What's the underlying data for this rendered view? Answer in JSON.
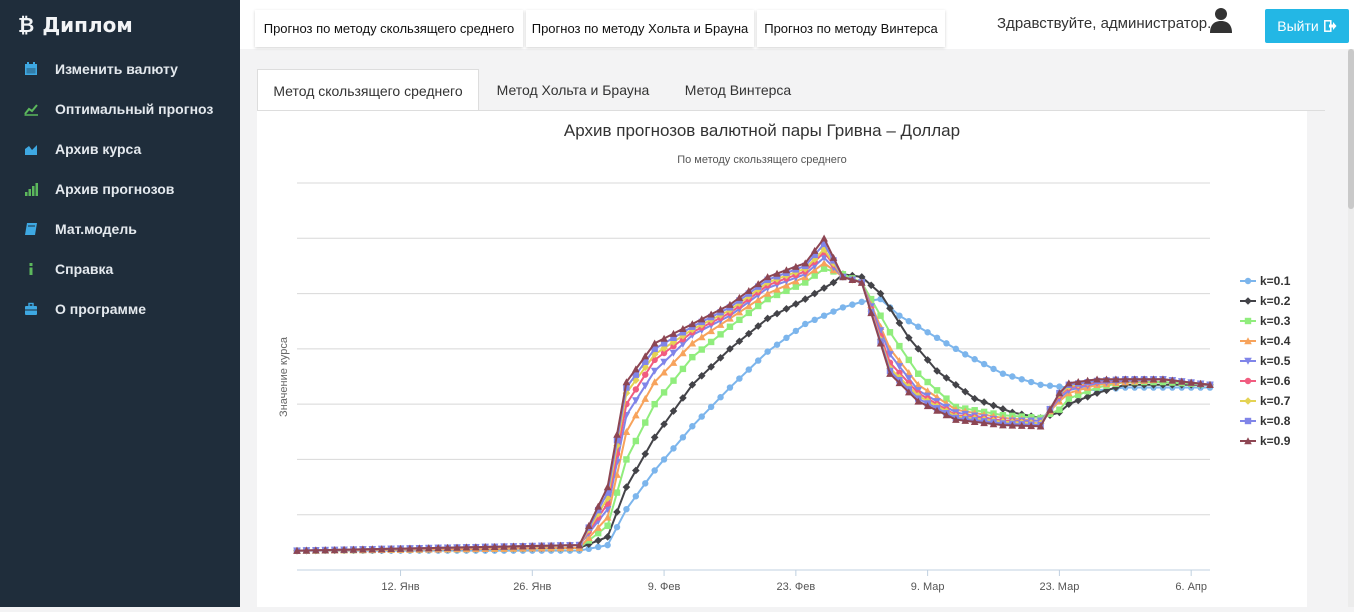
{
  "sidebar": {
    "brand": "Диплом",
    "items": [
      {
        "label": "Изменить валюту",
        "icon": "calendar-icon",
        "color": "#3ea8e2"
      },
      {
        "label": "Оптимальный прогноз",
        "icon": "line-chart-icon",
        "color": "#5cb85c"
      },
      {
        "label": "Архив курса",
        "icon": "area-chart-icon",
        "color": "#3ea8e2"
      },
      {
        "label": "Архив прогнозов",
        "icon": "signal-bars-icon",
        "color": "#5cb85c"
      },
      {
        "label": "Мат.модель",
        "icon": "book-icon",
        "color": "#3ea8e2"
      },
      {
        "label": "Справка",
        "icon": "info-icon",
        "color": "#5cb85c"
      },
      {
        "label": "О программе",
        "icon": "briefcase-icon",
        "color": "#3ea8e2"
      }
    ]
  },
  "topbar": {
    "tabs": [
      "Прогноз по методу скользящего среднего",
      "Прогноз по методу Хольта и Брауна",
      "Прогноз по методу Винтерса"
    ],
    "greeting": "Здравствуйте, администратор.",
    "logout_label": "Выйти"
  },
  "content_tabs": [
    "Метод скользящего среднего",
    "Метод Хольта и Брауна",
    "Метод Винтерса"
  ],
  "chart_data": {
    "type": "line",
    "title": "Архив прогнозов валютной пары Гривна – Доллар",
    "subtitle": "По методу скользящего среднего",
    "ylabel": "Значение курса",
    "xlabel": "",
    "x_tick_labels": [
      "12. Янв",
      "26. Янв",
      "9. Фев",
      "23. Фев",
      "9. Мар",
      "23. Мар",
      "6. Апр"
    ],
    "x_tick_days": [
      11,
      25,
      39,
      53,
      67,
      81,
      95
    ],
    "x_range_days": [
      0,
      97
    ],
    "y_range": [
      0,
      7
    ],
    "grid": true,
    "legend_position": "right",
    "series": [
      {
        "name": "k=0.1",
        "color": "#7cb5ec",
        "marker": "circle",
        "values": [
          [
            0,
            0.35
          ],
          [
            30,
            0.35
          ],
          [
            33,
            0.45
          ],
          [
            35,
            1.1
          ],
          [
            38,
            1.8
          ],
          [
            42,
            2.6
          ],
          [
            46,
            3.3
          ],
          [
            50,
            3.95
          ],
          [
            54,
            4.45
          ],
          [
            58,
            4.75
          ],
          [
            60,
            4.85
          ],
          [
            62,
            4.9
          ],
          [
            64,
            4.6
          ],
          [
            67,
            4.3
          ],
          [
            71,
            3.9
          ],
          [
            75,
            3.55
          ],
          [
            79,
            3.35
          ],
          [
            82,
            3.3
          ],
          [
            85,
            3.25
          ],
          [
            88,
            3.3
          ],
          [
            97,
            3.3
          ]
        ]
      },
      {
        "name": "k=0.2",
        "color": "#434348",
        "marker": "diamond",
        "values": [
          [
            0,
            0.35
          ],
          [
            30,
            0.4
          ],
          [
            33,
            0.6
          ],
          [
            35,
            1.5
          ],
          [
            38,
            2.4
          ],
          [
            42,
            3.35
          ],
          [
            46,
            4.0
          ],
          [
            50,
            4.55
          ],
          [
            54,
            4.9
          ],
          [
            57,
            5.2
          ],
          [
            58,
            5.35
          ],
          [
            60,
            5.3
          ],
          [
            62,
            5.0
          ],
          [
            65,
            4.2
          ],
          [
            68,
            3.6
          ],
          [
            72,
            3.1
          ],
          [
            76,
            2.85
          ],
          [
            79,
            2.75
          ],
          [
            81,
            2.85
          ],
          [
            82,
            3.0
          ],
          [
            85,
            3.2
          ],
          [
            88,
            3.35
          ],
          [
            92,
            3.35
          ],
          [
            97,
            3.35
          ]
        ]
      },
      {
        "name": "k=0.3",
        "color": "#90ed7d",
        "marker": "square",
        "values": [
          [
            0,
            0.35
          ],
          [
            30,
            0.4
          ],
          [
            33,
            0.8
          ],
          [
            35,
            2.0
          ],
          [
            38,
            3.0
          ],
          [
            42,
            3.85
          ],
          [
            46,
            4.4
          ],
          [
            50,
            4.9
          ],
          [
            54,
            5.2
          ],
          [
            56,
            5.45
          ],
          [
            58,
            5.35
          ],
          [
            60,
            5.2
          ],
          [
            63,
            4.3
          ],
          [
            66,
            3.55
          ],
          [
            70,
            2.95
          ],
          [
            75,
            2.8
          ],
          [
            79,
            2.75
          ],
          [
            81,
            2.9
          ],
          [
            82,
            3.1
          ],
          [
            85,
            3.3
          ],
          [
            88,
            3.4
          ],
          [
            92,
            3.4
          ],
          [
            97,
            3.35
          ]
        ]
      },
      {
        "name": "k=0.4",
        "color": "#f7a35c",
        "marker": "triangle",
        "values": [
          [
            0,
            0.35
          ],
          [
            30,
            0.4
          ],
          [
            33,
            0.95
          ],
          [
            35,
            2.5
          ],
          [
            38,
            3.4
          ],
          [
            42,
            4.1
          ],
          [
            46,
            4.55
          ],
          [
            50,
            5.0
          ],
          [
            54,
            5.3
          ],
          [
            56,
            5.55
          ],
          [
            58,
            5.3
          ],
          [
            60,
            5.2
          ],
          [
            63,
            4.0
          ],
          [
            66,
            3.35
          ],
          [
            70,
            2.9
          ],
          [
            75,
            2.75
          ],
          [
            79,
            2.7
          ],
          [
            81,
            3.05
          ],
          [
            82,
            3.2
          ],
          [
            85,
            3.35
          ],
          [
            88,
            3.4
          ],
          [
            92,
            3.45
          ],
          [
            97,
            3.35
          ]
        ]
      },
      {
        "name": "k=0.5",
        "color": "#8085e9",
        "marker": "triangle-down",
        "values": [
          [
            0,
            0.35
          ],
          [
            30,
            0.45
          ],
          [
            33,
            1.1
          ],
          [
            35,
            2.8
          ],
          [
            38,
            3.6
          ],
          [
            42,
            4.25
          ],
          [
            46,
            4.6
          ],
          [
            50,
            5.1
          ],
          [
            54,
            5.35
          ],
          [
            56,
            5.65
          ],
          [
            58,
            5.3
          ],
          [
            60,
            5.2
          ],
          [
            63,
            3.9
          ],
          [
            66,
            3.25
          ],
          [
            70,
            2.85
          ],
          [
            75,
            2.7
          ],
          [
            79,
            2.7
          ],
          [
            81,
            3.1
          ],
          [
            82,
            3.25
          ],
          [
            85,
            3.38
          ],
          [
            88,
            3.42
          ],
          [
            92,
            3.45
          ],
          [
            97,
            3.35
          ]
        ]
      },
      {
        "name": "k=0.6",
        "color": "#f15c80",
        "marker": "circle",
        "values": [
          [
            0,
            0.35
          ],
          [
            30,
            0.45
          ],
          [
            33,
            1.2
          ],
          [
            35,
            3.0
          ],
          [
            38,
            3.8
          ],
          [
            42,
            4.3
          ],
          [
            46,
            4.65
          ],
          [
            50,
            5.15
          ],
          [
            54,
            5.4
          ],
          [
            56,
            5.75
          ],
          [
            58,
            5.3
          ],
          [
            60,
            5.2
          ],
          [
            63,
            3.75
          ],
          [
            66,
            3.2
          ],
          [
            70,
            2.8
          ],
          [
            75,
            2.7
          ],
          [
            79,
            2.65
          ],
          [
            81,
            3.15
          ],
          [
            82,
            3.3
          ],
          [
            85,
            3.4
          ],
          [
            88,
            3.45
          ],
          [
            92,
            3.45
          ],
          [
            97,
            3.35
          ]
        ]
      },
      {
        "name": "k=0.7",
        "color": "#e4d354",
        "marker": "diamond",
        "values": [
          [
            0,
            0.35
          ],
          [
            30,
            0.45
          ],
          [
            33,
            1.3
          ],
          [
            35,
            3.2
          ],
          [
            38,
            3.9
          ],
          [
            42,
            4.35
          ],
          [
            46,
            4.7
          ],
          [
            50,
            5.2
          ],
          [
            54,
            5.45
          ],
          [
            56,
            5.8
          ],
          [
            58,
            5.3
          ],
          [
            60,
            5.2
          ],
          [
            63,
            3.65
          ],
          [
            66,
            3.15
          ],
          [
            70,
            2.78
          ],
          [
            75,
            2.68
          ],
          [
            79,
            2.65
          ],
          [
            81,
            3.18
          ],
          [
            82,
            3.32
          ],
          [
            85,
            3.42
          ],
          [
            88,
            3.45
          ],
          [
            92,
            3.45
          ],
          [
            97,
            3.35
          ]
        ]
      },
      {
        "name": "k=0.8",
        "color": "#8085e8",
        "marker": "square",
        "values": [
          [
            0,
            0.35
          ],
          [
            30,
            0.45
          ],
          [
            33,
            1.4
          ],
          [
            35,
            3.3
          ],
          [
            38,
            4.0
          ],
          [
            42,
            4.4
          ],
          [
            46,
            4.75
          ],
          [
            50,
            5.25
          ],
          [
            54,
            5.5
          ],
          [
            56,
            5.9
          ],
          [
            58,
            5.3
          ],
          [
            60,
            5.2
          ],
          [
            63,
            3.6
          ],
          [
            66,
            3.1
          ],
          [
            70,
            2.75
          ],
          [
            75,
            2.65
          ],
          [
            79,
            2.62
          ],
          [
            81,
            3.2
          ],
          [
            82,
            3.35
          ],
          [
            85,
            3.42
          ],
          [
            88,
            3.45
          ],
          [
            92,
            3.45
          ],
          [
            97,
            3.35
          ]
        ]
      },
      {
        "name": "k=0.9",
        "color": "#8d4653",
        "marker": "triangle",
        "values": [
          [
            0,
            0.35
          ],
          [
            30,
            0.45
          ],
          [
            33,
            1.5
          ],
          [
            35,
            3.4
          ],
          [
            38,
            4.1
          ],
          [
            42,
            4.45
          ],
          [
            46,
            4.8
          ],
          [
            50,
            5.3
          ],
          [
            54,
            5.55
          ],
          [
            56,
            6.0
          ],
          [
            58,
            5.3
          ],
          [
            60,
            5.2
          ],
          [
            63,
            3.55
          ],
          [
            66,
            3.05
          ],
          [
            70,
            2.72
          ],
          [
            75,
            2.62
          ],
          [
            79,
            2.6
          ],
          [
            81,
            3.2
          ],
          [
            82,
            3.38
          ],
          [
            85,
            3.45
          ],
          [
            88,
            3.45
          ],
          [
            92,
            3.45
          ],
          [
            97,
            3.35
          ]
        ]
      }
    ]
  }
}
